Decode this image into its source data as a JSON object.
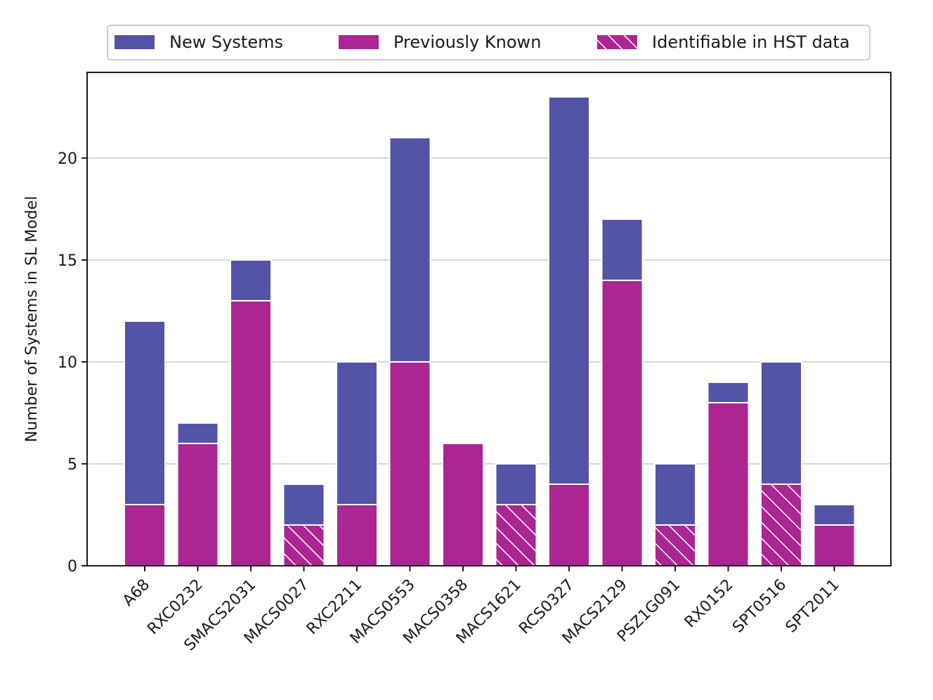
{
  "chart_data": {
    "type": "bar",
    "stacked": true,
    "title": "",
    "xlabel": "",
    "ylabel": "Number of Systems in SL Model",
    "ylim": [
      0,
      24.2
    ],
    "yticks": [
      0,
      5,
      10,
      15,
      20
    ],
    "grid": "y",
    "legend_position": "top-center",
    "categories": [
      "A68",
      "RXC0232",
      "SMACS2031",
      "MACS0027",
      "RXC2211",
      "MACS0553",
      "MACS0358",
      "MACS1621",
      "RCS0327",
      "MACS2129",
      "PSZ1G091",
      "RX0152",
      "SPT0516",
      "SPT2011"
    ],
    "series": [
      {
        "name": "Previously Known",
        "color": "#ab2593",
        "values": [
          3,
          6,
          13,
          2,
          3,
          10,
          6,
          3,
          4,
          14,
          2,
          8,
          4,
          2
        ]
      },
      {
        "name": "New Systems",
        "color": "#5353a7",
        "values": [
          9,
          1,
          2,
          2,
          7,
          11,
          0,
          2,
          19,
          3,
          3,
          1,
          6,
          1
        ]
      }
    ],
    "hatched_previously_known": [
      false,
      false,
      false,
      true,
      false,
      false,
      false,
      true,
      false,
      false,
      true,
      false,
      true,
      false
    ],
    "legend": [
      {
        "label": "New Systems",
        "color": "#5353a7",
        "hatched": false
      },
      {
        "label": "Previously Known",
        "color": "#ab2593",
        "hatched": false
      },
      {
        "label": "Identifiable in HST data",
        "color": "#ab2593",
        "hatched": true
      }
    ]
  }
}
